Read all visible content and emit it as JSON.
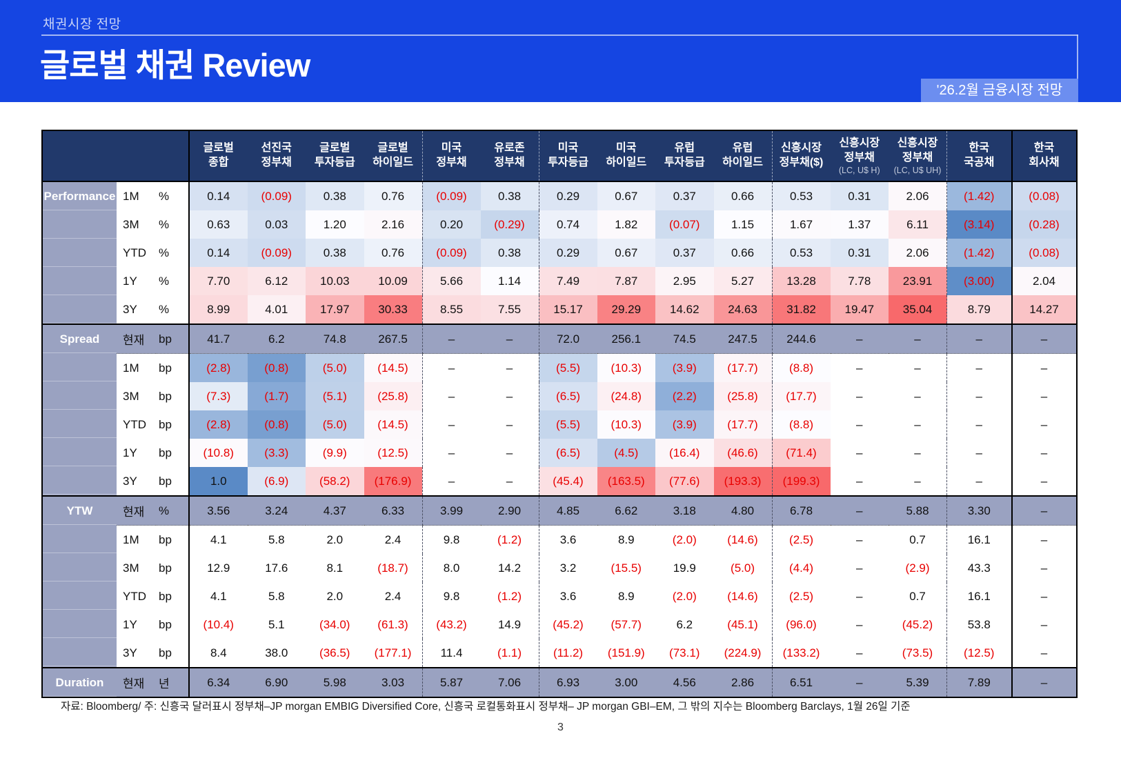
{
  "page": {
    "eyebrow": "채권시장 전망",
    "title": "글로벌 채권 Review",
    "badge": "'26.2월 금융시장 전망",
    "footnote": "자료: Bloomberg/ 주: 신흥국 달러표시 정부채–JP morgan EMBIG Diversified Core, 신흥국 로컬통화표시 정부채– JP morgan GBI–EM, 그 밖의 지수는 Bloomberg Barclays, 1월 26일 기준",
    "page_number": "3"
  },
  "colors": {
    "band_blue": "#1545E2",
    "badge_blue": "#6C8EF0",
    "header_navy": "#21396B",
    "row_purple": "#9AA2C1",
    "negative_red": "#E80000",
    "heat_red": "#F8696B",
    "heat_white": "#FCFCFF",
    "heat_blue": "#5A8AC6"
  },
  "table": {
    "columns": [
      {
        "lines": [
          "글로벌",
          "종합"
        ]
      },
      {
        "lines": [
          "선진국",
          "정부채"
        ]
      },
      {
        "lines": [
          "글로벌",
          "투자등급"
        ]
      },
      {
        "lines": [
          "글로벌",
          "하이일드"
        ],
        "divider": "dashed"
      },
      {
        "lines": [
          "미국",
          "정부채"
        ]
      },
      {
        "lines": [
          "유로존",
          "정부채"
        ],
        "divider": "dashed"
      },
      {
        "lines": [
          "미국",
          "투자등급"
        ]
      },
      {
        "lines": [
          "미국",
          "하이일드"
        ]
      },
      {
        "lines": [
          "유럽",
          "투자등급"
        ]
      },
      {
        "lines": [
          "유럽",
          "하이일드"
        ],
        "divider": "dashed"
      },
      {
        "lines": [
          "신흥시장",
          "정부채($)"
        ]
      },
      {
        "lines": [
          "신흥시장",
          "정부채"
        ],
        "sub": "(LC, U$ H)"
      },
      {
        "lines": [
          "신흥시장",
          "정부채"
        ],
        "sub": "(LC, U$ UH)",
        "divider": "dashed"
      },
      {
        "lines": [
          "한국",
          "국공채"
        ],
        "divider": "solid"
      },
      {
        "lines": [
          "한국",
          "회사채"
        ]
      }
    ],
    "sections": [
      {
        "label": "Performance",
        "scale": {
          "min": -3.14,
          "mid": 1.15,
          "max": 35.04,
          "high": "red"
        },
        "rows": [
          {
            "period": "1M",
            "unit": "%",
            "values": [
              "0.14",
              "(0.09)",
              "0.38",
              "0.76",
              "(0.09)",
              "0.38",
              "0.29",
              "0.67",
              "0.37",
              "0.66",
              "0.53",
              "0.31",
              "2.06",
              "(1.42)",
              "(0.08)"
            ]
          },
          {
            "period": "3M",
            "unit": "%",
            "values": [
              "0.63",
              "0.03",
              "1.20",
              "2.16",
              "0.20",
              "(0.29)",
              "0.74",
              "1.82",
              "(0.07)",
              "1.15",
              "1.67",
              "1.37",
              "6.11",
              "(3.14)",
              "(0.28)"
            ]
          },
          {
            "period": "YTD",
            "unit": "%",
            "values": [
              "0.14",
              "(0.09)",
              "0.38",
              "0.76",
              "(0.09)",
              "0.38",
              "0.29",
              "0.67",
              "0.37",
              "0.66",
              "0.53",
              "0.31",
              "2.06",
              "(1.42)",
              "(0.08)"
            ]
          },
          {
            "period": "1Y",
            "unit": "%",
            "values": [
              "7.70",
              "6.12",
              "10.03",
              "10.09",
              "5.66",
              "1.14",
              "7.49",
              "7.87",
              "2.95",
              "5.27",
              "13.28",
              "7.78",
              "23.91",
              "(3.00)",
              "2.04"
            ]
          },
          {
            "period": "3Y",
            "unit": "%",
            "values": [
              "8.99",
              "4.01",
              "17.97",
              "30.33",
              "8.55",
              "7.55",
              "15.17",
              "29.29",
              "14.62",
              "24.63",
              "31.82",
              "19.47",
              "35.04",
              "8.79",
              "14.27"
            ]
          }
        ]
      },
      {
        "label": "Spread",
        "scale": {
          "min": -199.3,
          "mid": -8.8,
          "max": 1.0,
          "high": "blue"
        },
        "rows": [
          {
            "period": "현재",
            "unit": "bp",
            "current": true,
            "values": [
              "41.7",
              "6.2",
              "74.8",
              "267.5",
              "–",
              "–",
              "72.0",
              "256.1",
              "74.5",
              "247.5",
              "244.6",
              "–",
              "–",
              "–",
              "–"
            ]
          },
          {
            "period": "1M",
            "unit": "bp",
            "values": [
              "(2.8)",
              "(0.8)",
              "(5.0)",
              "(14.5)",
              "–",
              "–",
              "(5.5)",
              "(10.3)",
              "(3.9)",
              "(17.7)",
              "(8.8)",
              "–",
              "–",
              "–",
              "–"
            ]
          },
          {
            "period": "3M",
            "unit": "bp",
            "values": [
              "(7.3)",
              "(1.7)",
              "(5.1)",
              "(25.8)",
              "–",
              "–",
              "(6.5)",
              "(24.8)",
              "(2.2)",
              "(25.8)",
              "(17.7)",
              "–",
              "–",
              "–",
              "–"
            ]
          },
          {
            "period": "YTD",
            "unit": "bp",
            "values": [
              "(2.8)",
              "(0.8)",
              "(5.0)",
              "(14.5)",
              "–",
              "–",
              "(5.5)",
              "(10.3)",
              "(3.9)",
              "(17.7)",
              "(8.8)",
              "–",
              "–",
              "–",
              "–"
            ]
          },
          {
            "period": "1Y",
            "unit": "bp",
            "values": [
              "(10.8)",
              "(3.3)",
              "(9.9)",
              "(12.5)",
              "–",
              "–",
              "(6.5)",
              "(4.5)",
              "(16.4)",
              "(46.6)",
              "(71.4)",
              "–",
              "–",
              "–",
              "–"
            ]
          },
          {
            "period": "3Y",
            "unit": "bp",
            "values": [
              "1.0",
              "(6.9)",
              "(58.2)",
              "(176.9)",
              "–",
              "–",
              "(45.4)",
              "(163.5)",
              "(77.6)",
              "(193.3)",
              "(199.3)",
              "–",
              "–",
              "–",
              "–"
            ]
          }
        ]
      },
      {
        "label": "YTW",
        "rows": [
          {
            "period": "현재",
            "unit": "%",
            "current": true,
            "values": [
              "3.56",
              "3.24",
              "4.37",
              "6.33",
              "3.99",
              "2.90",
              "4.85",
              "6.62",
              "3.18",
              "4.80",
              "6.78",
              "–",
              "5.88",
              "3.30",
              "–"
            ]
          },
          {
            "period": "1M",
            "unit": "bp",
            "values": [
              "4.1",
              "5.8",
              "2.0",
              "2.4",
              "9.8",
              "(1.2)",
              "3.6",
              "8.9",
              "(2.0)",
              "(14.6)",
              "(2.5)",
              "–",
              "0.7",
              "16.1",
              "–"
            ]
          },
          {
            "period": "3M",
            "unit": "bp",
            "values": [
              "12.9",
              "17.6",
              "8.1",
              "(18.7)",
              "8.0",
              "14.2",
              "3.2",
              "(15.5)",
              "19.9",
              "(5.0)",
              "(4.4)",
              "–",
              "(2.9)",
              "43.3",
              "–"
            ]
          },
          {
            "period": "YTD",
            "unit": "bp",
            "values": [
              "4.1",
              "5.8",
              "2.0",
              "2.4",
              "9.8",
              "(1.2)",
              "3.6",
              "8.9",
              "(2.0)",
              "(14.6)",
              "(2.5)",
              "–",
              "0.7",
              "16.1",
              "–"
            ]
          },
          {
            "period": "1Y",
            "unit": "bp",
            "values": [
              "(10.4)",
              "5.1",
              "(34.0)",
              "(61.3)",
              "(43.2)",
              "14.9",
              "(45.2)",
              "(57.7)",
              "6.2",
              "(45.1)",
              "(96.0)",
              "–",
              "(45.2)",
              "53.8",
              "–"
            ]
          },
          {
            "period": "3Y",
            "unit": "bp",
            "values": [
              "8.4",
              "38.0",
              "(36.5)",
              "(177.1)",
              "11.4",
              "(1.1)",
              "(11.2)",
              "(151.9)",
              "(73.1)",
              "(224.9)",
              "(133.2)",
              "–",
              "(73.5)",
              "(12.5)",
              "–"
            ]
          }
        ]
      },
      {
        "label": "Duration",
        "rows": [
          {
            "period": "현재",
            "unit": "년",
            "current": true,
            "values": [
              "6.34",
              "6.90",
              "5.98",
              "3.03",
              "5.87",
              "7.06",
              "6.93",
              "3.00",
              "4.56",
              "2.86",
              "6.51",
              "–",
              "5.39",
              "7.89",
              "–"
            ]
          }
        ]
      }
    ]
  }
}
